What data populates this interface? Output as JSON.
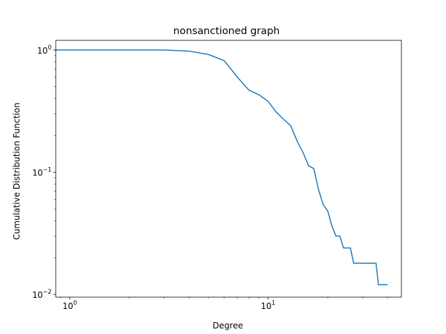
{
  "chart_data": {
    "type": "line",
    "title": "nonsanctioned graph",
    "xlabel": "Degree",
    "ylabel": "Cumulative Distribution Function",
    "xscale": "log",
    "yscale": "log",
    "xlim": [
      0.85,
      47
    ],
    "ylim": [
      0.0095,
      1.2
    ],
    "grid": false,
    "color": "#1f77b4",
    "x_major_ticks": [
      1,
      10
    ],
    "x_tick_labels": [
      {
        "base": "10",
        "exp": "0"
      },
      {
        "base": "10",
        "exp": "1"
      }
    ],
    "y_major_ticks": [
      0.01,
      0.1,
      1
    ],
    "y_tick_labels": [
      {
        "base": "10",
        "exp": "−2"
      },
      {
        "base": "10",
        "exp": "−1"
      },
      {
        "base": "10",
        "exp": "0"
      }
    ],
    "series": [
      {
        "x": [
          0.85,
          1,
          2,
          3,
          4,
          5,
          6,
          7,
          8,
          9,
          10,
          11,
          12,
          13,
          14,
          15,
          16,
          17,
          18,
          19,
          20,
          21,
          22,
          23,
          24,
          26,
          27,
          35,
          36,
          40
        ],
        "y": [
          1.0,
          1.0,
          1.0,
          1.0,
          0.98,
          0.92,
          0.82,
          0.6,
          0.47,
          0.43,
          0.38,
          0.31,
          0.27,
          0.24,
          0.18,
          0.145,
          0.113,
          0.107,
          0.071,
          0.054,
          0.048,
          0.036,
          0.03,
          0.03,
          0.024,
          0.024,
          0.018,
          0.018,
          0.012,
          0.012
        ]
      }
    ]
  }
}
